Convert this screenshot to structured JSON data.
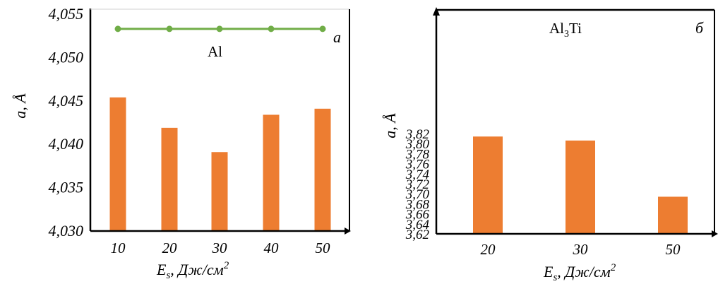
{
  "chart_data": [
    {
      "type": "bar",
      "panel_label": "а",
      "categories": [
        "10",
        "20",
        "30",
        "40",
        "50"
      ],
      "series": [
        {
          "type": "bar",
          "values": [
            4.0454,
            4.0419,
            4.0391,
            4.0434,
            4.0441
          ],
          "color": "#ed7d31"
        },
        {
          "type": "line",
          "values": [
            4.0533,
            4.0533,
            4.0533,
            4.0533,
            4.0533
          ],
          "color": "#70ad47"
        }
      ],
      "annotation": "Al",
      "xlabel": {
        "main": "E",
        "sub": "s",
        "unit": ", Дж/см",
        "sup": "2"
      },
      "ylabel": "a, Å",
      "yticks": [
        "4,030",
        "4,035",
        "4,040",
        "4,045",
        "4,050",
        "4,055"
      ],
      "ylim": [
        4.03,
        4.055
      ]
    },
    {
      "type": "bar",
      "panel_label": "б",
      "categories": [
        "20",
        "30",
        "50"
      ],
      "series": [
        {
          "type": "bar",
          "values": [
            3.814,
            3.806,
            3.694
          ],
          "color": "#ed7d31"
        }
      ],
      "annotation": {
        "main": "Al",
        "sub": "3",
        "tail": "Ti"
      },
      "xlabel": {
        "main": "E",
        "sub": "s",
        "unit": ", Дж/см",
        "sup": "2"
      },
      "ylabel": "a, Å",
      "yticks": [
        "3,62",
        "3,64",
        "3,66",
        "3,68",
        "3,70",
        "3,72",
        "3,74",
        "3,76",
        "3,78",
        "3,80",
        "3,82"
      ],
      "ylim": [
        3.62,
        3.83
      ]
    }
  ]
}
